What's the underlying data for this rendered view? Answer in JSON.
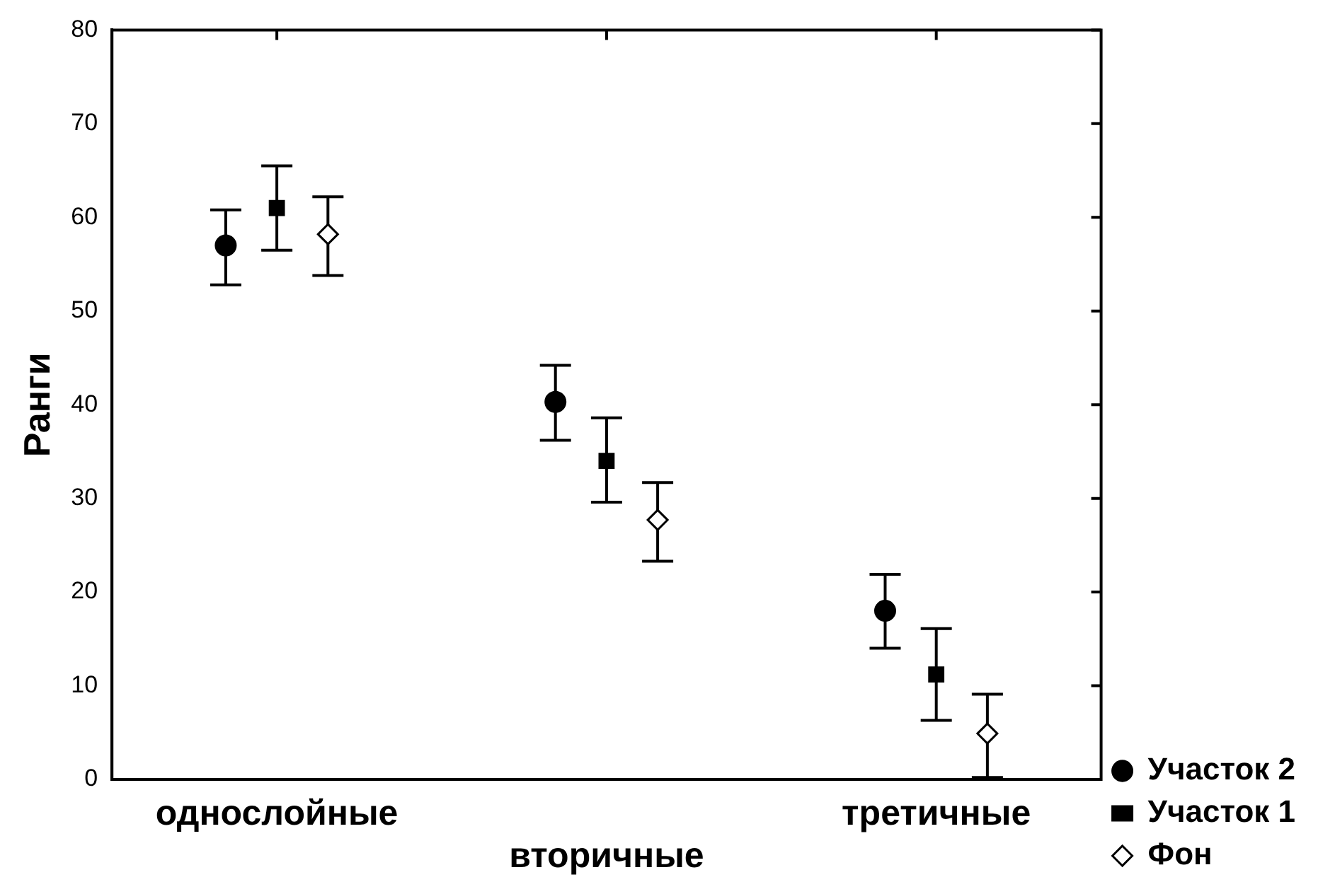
{
  "chart_data": {
    "type": "scatter",
    "ylabel": "Ранги",
    "categories": [
      "однослойные",
      "вторичные",
      "третичные"
    ],
    "ylim": [
      0,
      80
    ],
    "yticks": [
      0,
      10,
      20,
      30,
      40,
      50,
      60,
      70,
      80
    ],
    "legend": "bottom right",
    "grid": false,
    "series": [
      {
        "name": "Участок 2",
        "color": "#000000",
        "marker": "circle",
        "values": [
          57,
          40.3,
          18
        ],
        "errors": [
          [
            52.8,
            60.8
          ],
          [
            36.2,
            44.2
          ],
          [
            14,
            21.9
          ]
        ]
      },
      {
        "name": "Участок 1",
        "color": "#000000",
        "marker": "square",
        "values": [
          61,
          34,
          11.2
        ],
        "errors": [
          [
            56.5,
            65.5
          ],
          [
            29.6,
            38.6
          ],
          [
            6.3,
            16.1
          ]
        ]
      },
      {
        "name": "Фон",
        "color": "#000000",
        "marker": "diamond",
        "values": [
          58.2,
          27.7,
          4.9
        ],
        "errors": [
          [
            53.8,
            62.2
          ],
          [
            23.3,
            31.7
          ],
          [
            0.2,
            9.1
          ]
        ]
      }
    ]
  }
}
